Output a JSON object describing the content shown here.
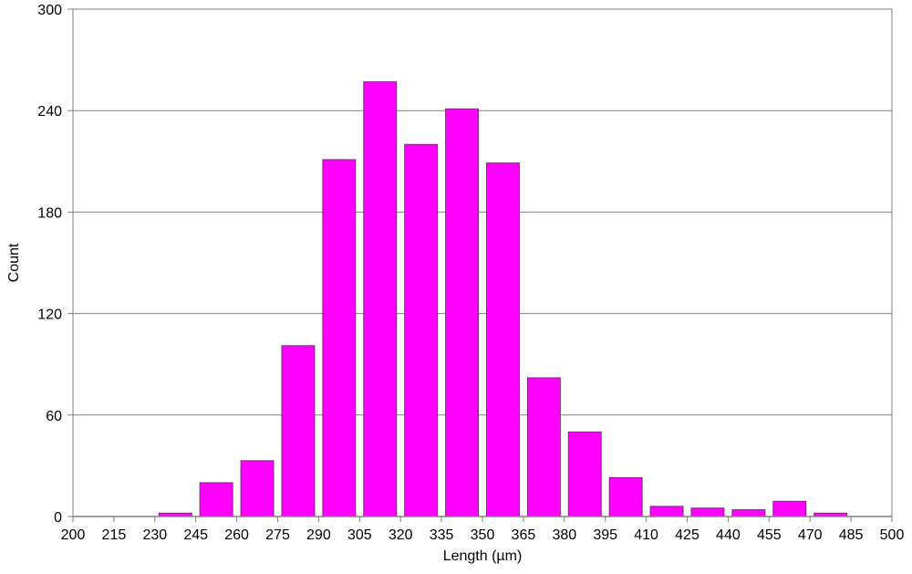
{
  "chart_data": {
    "type": "bar",
    "title": "",
    "xlabel": "Length (µm)",
    "ylabel": "Count",
    "ylim": [
      0,
      300
    ],
    "yticks": [
      0,
      60,
      120,
      180,
      240,
      300
    ],
    "xlim": [
      200,
      500
    ],
    "xticks": [
      200,
      215,
      230,
      245,
      260,
      275,
      290,
      305,
      320,
      335,
      350,
      365,
      380,
      395,
      410,
      425,
      440,
      455,
      470,
      485,
      500
    ],
    "bin_width": 15,
    "bins": [
      {
        "start": 230,
        "value": 2
      },
      {
        "start": 245,
        "value": 20
      },
      {
        "start": 260,
        "value": 33
      },
      {
        "start": 275,
        "value": 101
      },
      {
        "start": 290,
        "value": 211
      },
      {
        "start": 305,
        "value": 257
      },
      {
        "start": 320,
        "value": 220
      },
      {
        "start": 335,
        "value": 241
      },
      {
        "start": 350,
        "value": 209
      },
      {
        "start": 365,
        "value": 82
      },
      {
        "start": 380,
        "value": 50
      },
      {
        "start": 395,
        "value": 23
      },
      {
        "start": 410,
        "value": 6
      },
      {
        "start": 425,
        "value": 5
      },
      {
        "start": 440,
        "value": 4
      },
      {
        "start": 455,
        "value": 9
      },
      {
        "start": 470,
        "value": 2
      }
    ],
    "grid": "horizontal",
    "legend": "none",
    "colors": {
      "bar": "#ff00ff",
      "bar_edge": "#7a2a7a",
      "grid": "#808080"
    }
  }
}
